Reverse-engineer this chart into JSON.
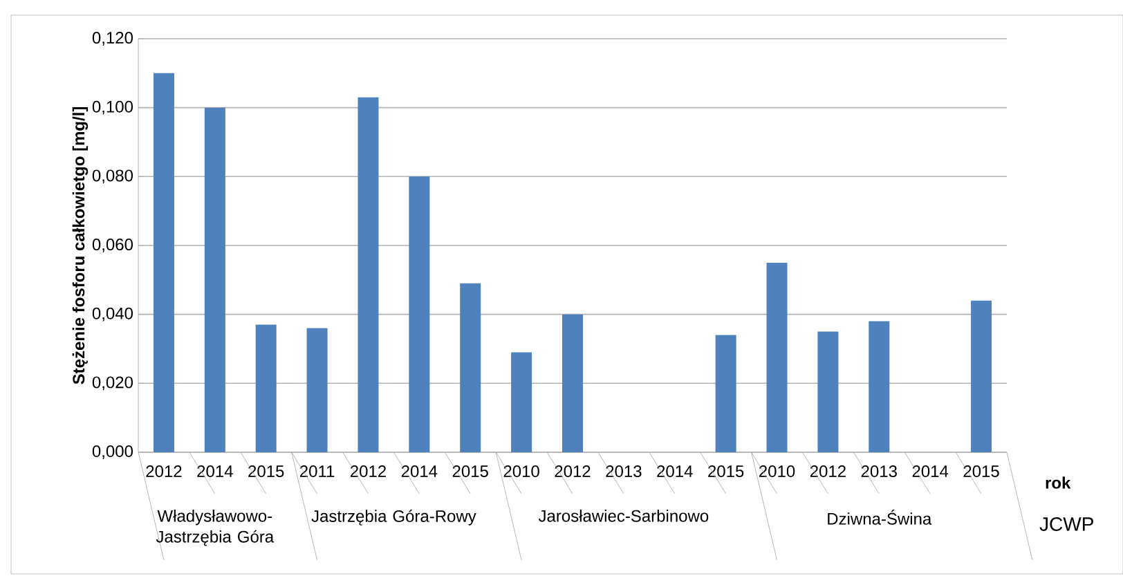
{
  "chart_data": {
    "type": "bar",
    "categories": [
      "2012",
      "2014",
      "2015",
      "2011",
      "2012",
      "2014",
      "2015",
      "2010",
      "2012",
      "2013",
      "2014",
      "2015",
      "2010",
      "2012",
      "2013",
      "2014",
      "2015"
    ],
    "values": [
      0.11,
      0.1,
      0.037,
      0.036,
      0.103,
      0.08,
      0.049,
      0.029,
      0.04,
      null,
      0.0,
      0.034,
      0.055,
      0.035,
      0.038,
      0.0,
      0.044
    ],
    "color": "#4f81bd",
    "ylabel": "Stężenie fosforu całkowietgo [mg/l]",
    "xlabel": "rok",
    "annotations": [
      "Władysławowo-Jastrzębia Góra",
      "Jastrzębia Góra-Rowy",
      "Jarosławiec-Sarbinowo",
      "Dziwna-Świna",
      "JCWP"
    ],
    "ylim": [
      0,
      0.12
    ],
    "yticks": [
      {
        "value": 0,
        "label": "0,000"
      },
      {
        "value": 0.02,
        "label": "0,020"
      },
      {
        "value": 0.04,
        "label": "0,040"
      },
      {
        "value": 0.06,
        "label": "0,060"
      },
      {
        "value": 0.08,
        "label": "0,080"
      },
      {
        "value": 0.1,
        "label": "0,100"
      },
      {
        "value": 0.12,
        "label": "0,120"
      }
    ],
    "grid": "y"
  }
}
